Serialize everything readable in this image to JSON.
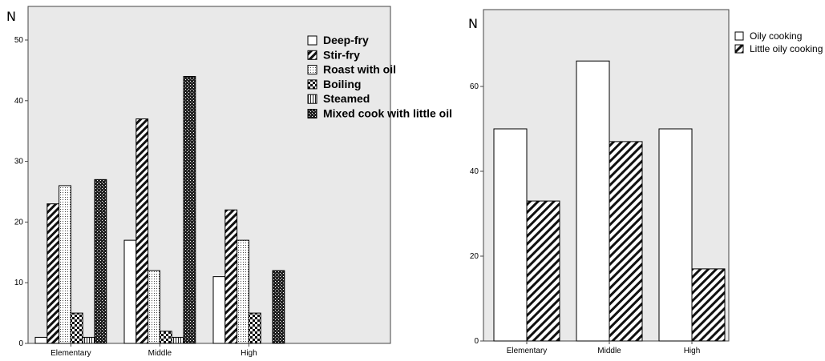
{
  "chart_data": [
    {
      "type": "bar",
      "ylabel": "N",
      "categories": [
        "Elementary",
        "Middle",
        "High"
      ],
      "ylim": [
        0,
        50
      ],
      "yticks": [
        0,
        10,
        20,
        30,
        40,
        50
      ],
      "legend_position": "top-right",
      "series": [
        {
          "name": "Deep-fry",
          "pattern": "empty",
          "values": [
            1,
            17,
            11
          ]
        },
        {
          "name": "Stir-fry",
          "pattern": "diag",
          "values": [
            23,
            37,
            22
          ]
        },
        {
          "name": "Roast with oil",
          "pattern": "dots",
          "values": [
            26,
            12,
            17
          ]
        },
        {
          "name": "Boiling",
          "pattern": "checker",
          "values": [
            5,
            2,
            5
          ]
        },
        {
          "name": "Steamed",
          "pattern": "vlines",
          "values": [
            1,
            1,
            0
          ]
        },
        {
          "name": "Mixed cook with little oil",
          "pattern": "crosshatch",
          "values": [
            27,
            44,
            12
          ]
        }
      ]
    },
    {
      "type": "bar",
      "ylabel": "N",
      "categories": [
        "Elementary",
        "Middle",
        "High"
      ],
      "ylim": [
        0,
        70
      ],
      "yticks": [
        0,
        20,
        40,
        60
      ],
      "legend_position": "top-right",
      "series": [
        {
          "name": "Oily cooking",
          "pattern": "empty",
          "values": [
            50,
            66,
            50
          ]
        },
        {
          "name": "Little oily cooking",
          "pattern": "diag",
          "values": [
            33,
            47,
            17
          ]
        }
      ]
    }
  ]
}
